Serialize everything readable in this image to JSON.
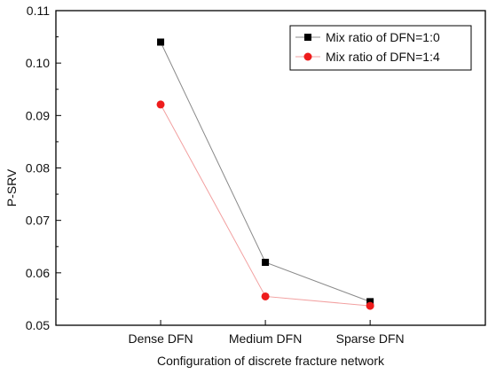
{
  "chart_data": {
    "type": "line",
    "title": "",
    "xlabel": "Configuration of discrete fracture network",
    "ylabel": "P-SRV",
    "categories": [
      "Dense DFN",
      "Medium DFN",
      "Sparse DFN"
    ],
    "ylim": [
      0.05,
      0.11
    ],
    "yticks": [
      "0.05",
      "0.06",
      "0.07",
      "0.08",
      "0.09",
      "0.10",
      "0.11"
    ],
    "grid": false,
    "legend_position": "top-right",
    "series": [
      {
        "name": "Mix ratio of DFN=1:0",
        "values": [
          0.104,
          0.062,
          0.0545
        ],
        "color": "#000000",
        "line_color": "#8a8a8a",
        "marker": "square"
      },
      {
        "name": "Mix ratio of DFN=1:4",
        "values": [
          0.0921,
          0.0555,
          0.0537
        ],
        "color": "#ee1c1c",
        "line_color": "#f2a0a0",
        "marker": "circle"
      }
    ]
  }
}
